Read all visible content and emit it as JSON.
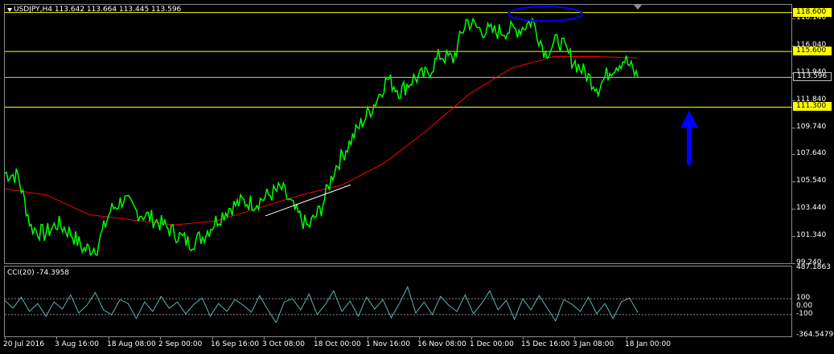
{
  "chart": {
    "header": "USDJPY,H4  113.642 113.664 113.445 113.596",
    "indicator_header": "CCI(20) -74.3958",
    "colors": {
      "background": "#000000",
      "price_bars": "#00ff00",
      "moving_average": "#ff0000",
      "horizontal_levels": "#ffff00",
      "current_price_line": "#c0c0c0",
      "trendline": "#ffffff",
      "highlight_ellipse": "#0000ff",
      "arrow": "#0000ff",
      "cci_line": "#5fb3b3",
      "grid": "#8c8c8c"
    },
    "price_axis": [
      "118.140",
      "116.040",
      "113.940",
      "111.840",
      "109.740",
      "107.640",
      "105.540",
      "103.440",
      "101.340",
      "99.240"
    ],
    "level_tags": [
      {
        "label": "118.600",
        "style": "yellow"
      },
      {
        "label": "115.600",
        "style": "yellow"
      },
      {
        "label": "113.596",
        "style": "white"
      },
      {
        "label": "111.300",
        "style": "yellow"
      }
    ],
    "cci_axis": [
      "487.1863",
      "100",
      "0.00",
      "-100",
      "-364.5479"
    ],
    "time_axis": [
      "20 Jul 2016",
      "3 Aug 16:00",
      "18 Aug 08:00",
      "2 Sep 00:00",
      "16 Sep 16:00",
      "3 Oct 08:00",
      "18 Oct 00:00",
      "1 Nov 16:00",
      "16 Nov 08:00",
      "1 Dec 00:00",
      "15 Dec 16:00",
      "3 Jan 08:00",
      "18 Jan 00:00"
    ],
    "annotations": [
      "ellipse-at-highs",
      "upward-arrow",
      "trendline"
    ]
  },
  "chart_data": {
    "type": "line",
    "symbol": "USDJPY",
    "timeframe": "H4",
    "ohlc_last": {
      "open": 113.642,
      "high": 113.664,
      "low": 113.445,
      "close": 113.596
    },
    "ylim": [
      99.24,
      119.2
    ],
    "price_series": [
      {
        "name": "price",
        "points": [
          [
            "20 Jul 2016",
            106.2
          ],
          [
            "25 Jul",
            106.0
          ],
          [
            "29 Jul",
            102.0
          ],
          [
            "3 Aug 16:00",
            101.5
          ],
          [
            "8 Aug",
            102.3
          ],
          [
            "12 Aug",
            101.6
          ],
          [
            "16 Aug",
            100.3
          ],
          [
            "18 Aug 08:00",
            100.5
          ],
          [
            "23 Aug",
            103.3
          ],
          [
            "28 Aug",
            104.2
          ],
          [
            "2 Sep 00:00",
            103.2
          ],
          [
            "7 Sep",
            102.8
          ],
          [
            "12 Sep",
            102.2
          ],
          [
            "16 Sep 16:00",
            101.5
          ],
          [
            "22 Sep",
            100.8
          ],
          [
            "28 Sep",
            101.3
          ],
          [
            "3 Oct 08:00",
            102.5
          ],
          [
            "8 Oct",
            103.5
          ],
          [
            "13 Oct",
            104.0
          ],
          [
            "18 Oct 00:00",
            103.9
          ],
          [
            "24 Oct",
            104.5
          ],
          [
            "28 Oct",
            105.0
          ],
          [
            "31 Oct",
            103.3
          ],
          [
            "1 Nov 16:00",
            102.0
          ],
          [
            "4 Nov",
            103.5
          ],
          [
            "9 Nov",
            106.5
          ],
          [
            "13 Nov",
            108.3
          ],
          [
            "16 Nov 08:00",
            110.0
          ],
          [
            "20 Nov",
            111.5
          ],
          [
            "24 Nov",
            113.5
          ],
          [
            "28 Nov",
            112.5
          ],
          [
            "1 Dec 00:00",
            113.5
          ],
          [
            "5 Dec",
            113.8
          ],
          [
            "9 Dec",
            115.3
          ],
          [
            "12 Dec",
            115.0
          ],
          [
            "15 Dec 16:00",
            118.0
          ],
          [
            "20 Dec",
            117.3
          ],
          [
            "24 Dec",
            117.1
          ],
          [
            "28 Dec",
            117.2
          ],
          [
            "31 Dec",
            117.3
          ],
          [
            "3 Jan 08:00",
            118.0
          ],
          [
            "5 Jan",
            115.5
          ],
          [
            "8 Jan",
            116.5
          ],
          [
            "11 Jan",
            115.0
          ],
          [
            "14 Jan",
            113.9
          ],
          [
            "16 Jan",
            112.8
          ],
          [
            "18 Jan 00:00",
            114.3
          ],
          [
            "20 Jan",
            115.0
          ],
          [
            "21 Jan",
            113.6
          ]
        ]
      },
      {
        "name": "moving-average",
        "points": [
          [
            "20 Jul 2016",
            105.0
          ],
          [
            "3 Aug 16:00",
            104.5
          ],
          [
            "18 Aug 08:00",
            103.0
          ],
          [
            "2 Sep 00:00",
            102.6
          ],
          [
            "16 Sep 16:00",
            102.2
          ],
          [
            "3 Oct 08:00",
            102.5
          ],
          [
            "18 Oct 00:00",
            103.5
          ],
          [
            "1 Nov 16:00",
            104.5
          ],
          [
            "9 Nov",
            105.3
          ],
          [
            "16 Nov 08:00",
            107.0
          ],
          [
            "1 Dec 00:00",
            109.5
          ],
          [
            "15 Dec 16:00",
            112.3
          ],
          [
            "3 Jan 08:00",
            114.3
          ],
          [
            "13 Jan",
            115.2
          ],
          [
            "18 Jan 00:00",
            115.2
          ],
          [
            "21 Jan",
            115.1
          ]
        ]
      }
    ],
    "horizontal_levels": [
      118.6,
      115.6,
      111.3
    ],
    "current_price": 113.596,
    "cci": {
      "name": "CCI(20)",
      "last_value": -74.3958,
      "ylim": [
        -364.5479,
        487.1863
      ],
      "levels": [
        100,
        0,
        -100
      ],
      "values": [
        80,
        -20,
        120,
        -60,
        40,
        -120,
        60,
        -30,
        150,
        -80,
        20,
        180,
        -40,
        -100,
        90,
        40,
        -150,
        60,
        -60,
        130,
        -20,
        60,
        -90,
        30,
        110,
        -120,
        40,
        -60,
        90,
        20,
        -70,
        140,
        -40,
        -200,
        60,
        100,
        -40,
        160,
        -100,
        30,
        200,
        -60,
        70,
        -120,
        120,
        -30,
        90,
        -140,
        40,
        250,
        -80,
        60,
        -100,
        130,
        20,
        -60,
        150,
        -90,
        40,
        200,
        -40,
        80,
        -160,
        100,
        -40,
        140,
        -20,
        -180,
        90,
        30,
        -60,
        120,
        -90,
        40,
        -150,
        60,
        110,
        -74
      ]
    }
  }
}
